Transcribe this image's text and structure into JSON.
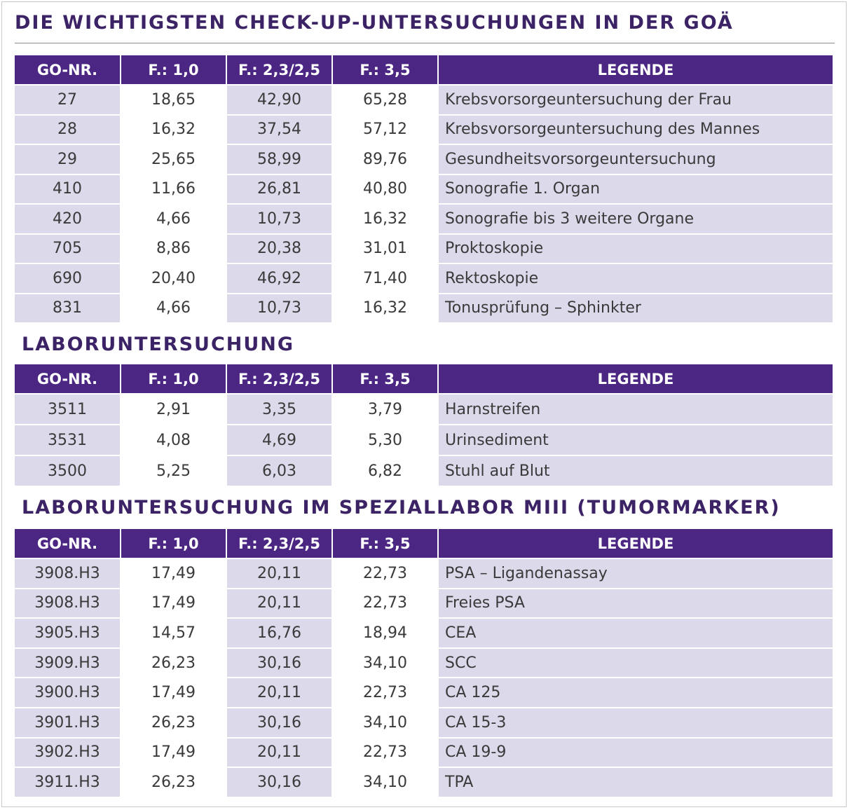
{
  "colors": {
    "header": "#4b2683",
    "title": "#3b2366",
    "row_shade": "#dcd9eb"
  },
  "columns": [
    "GO-NR.",
    "F.: 1,0",
    "F.: 2,3/2,5",
    "F.: 3,5",
    "LEGENDE"
  ],
  "sections": [
    {
      "title": "DIE WICHTIGSTEN CHECK-UP-UNTERSUCHUNGEN IN DER GOÄ",
      "rows": [
        [
          "27",
          "18,65",
          "42,90",
          "65,28",
          "Krebsvorsorgeuntersuchung der Frau"
        ],
        [
          "28",
          "16,32",
          "37,54",
          "57,12",
          "Krebsvorsorgeuntersuchung des Mannes"
        ],
        [
          "29",
          "25,65",
          "58,99",
          "89,76",
          "Gesundheitsvorsorgeuntersuchung"
        ],
        [
          "410",
          "11,66",
          "26,81",
          "40,80",
          "Sonografie 1. Organ"
        ],
        [
          "420",
          "4,66",
          "10,73",
          "16,32",
          "Sonografie bis 3 weitere Organe"
        ],
        [
          "705",
          "8,86",
          "20,38",
          "31,01",
          "Proktoskopie"
        ],
        [
          "690",
          "20,40",
          "46,92",
          "71,40",
          "Rektoskopie"
        ],
        [
          "831",
          "4,66",
          "10,73",
          "16,32",
          "Tonusprüfung – Sphinkter"
        ]
      ]
    },
    {
      "title": "LABORUNTERSUCHUNG",
      "rows": [
        [
          "3511",
          "2,91",
          "3,35",
          "3,79",
          "Harnstreifen"
        ],
        [
          "3531",
          "4,08",
          "4,69",
          "5,30",
          "Urinsediment"
        ],
        [
          "3500",
          "5,25",
          "6,03",
          "6,82",
          "Stuhl auf Blut"
        ]
      ]
    },
    {
      "title": "LABORUNTERSUCHUNG IM SPEZIALLABOR MIII (TUMORMARKER)",
      "rows": [
        [
          "3908.H3",
          "17,49",
          "20,11",
          "22,73",
          "PSA – Ligandenassay"
        ],
        [
          "3908.H3",
          "17,49",
          "20,11",
          "22,73",
          "Freies PSA"
        ],
        [
          "3905.H3",
          "14,57",
          "16,76",
          "18,94",
          "CEA"
        ],
        [
          "3909.H3",
          "26,23",
          "30,16",
          "34,10",
          "SCC"
        ],
        [
          "3900.H3",
          "17,49",
          "20,11",
          "22,73",
          "CA 125"
        ],
        [
          "3901.H3",
          "26,23",
          "30,16",
          "34,10",
          "CA 15-3"
        ],
        [
          "3902.H3",
          "17,49",
          "20,11",
          "22,73",
          "CA 19-9"
        ],
        [
          "3911.H3",
          "26,23",
          "30,16",
          "34,10",
          "TPA"
        ]
      ]
    }
  ]
}
